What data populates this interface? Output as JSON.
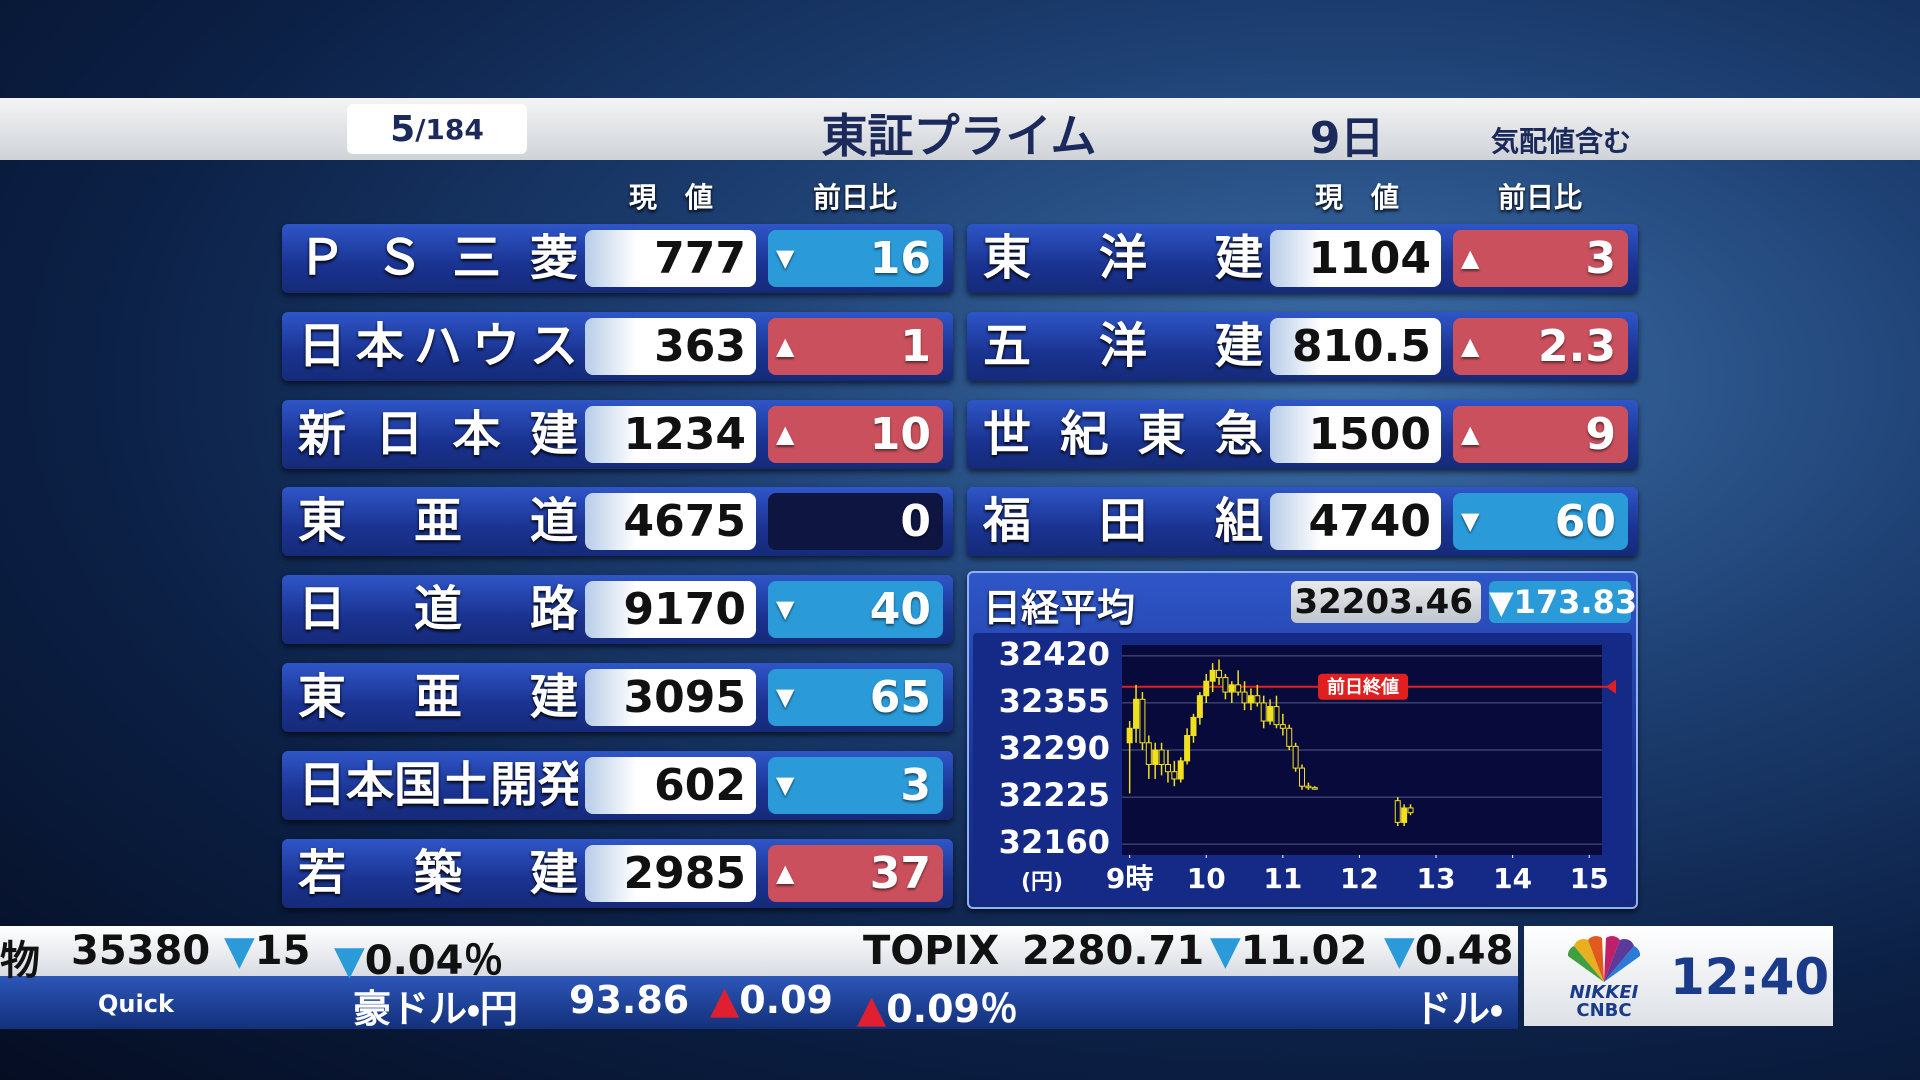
{
  "header": {
    "page": "5",
    "total": "/184",
    "title": "東証プライム",
    "date": "9日",
    "note": "気配値含む"
  },
  "columns": {
    "price": "現　値",
    "change": "前日比"
  },
  "stocks": [
    {
      "name": "ＰＳ三菱",
      "price": "777",
      "arrow": "▼",
      "change": "16",
      "color": "#2a9ad8"
    },
    {
      "name": "日本ハウス",
      "price": "363",
      "arrow": "▲",
      "change": "1",
      "color": "#c9505c"
    },
    {
      "name": "新日本建",
      "price": "1234",
      "arrow": "▲",
      "change": "10",
      "color": "#c9505c"
    },
    {
      "name": "東亜道",
      "price": "4675",
      "change": "0",
      "color": "#0d1540"
    },
    {
      "name": "日道路",
      "price": "9170",
      "arrow": "▼",
      "change": "40",
      "color": "#2a9ad8"
    },
    {
      "name": "東亜建",
      "price": "3095",
      "arrow": "▼",
      "change": "65",
      "color": "#2a9ad8"
    },
    {
      "name": "日本国土開発",
      "price": "602",
      "arrow": "▼",
      "change": "3",
      "color": "#2a9ad8"
    },
    {
      "name": "若築建",
      "price": "2985",
      "arrow": "▲",
      "change": "37",
      "color": "#c9505c"
    },
    {
      "name": "東洋建",
      "price": "1104",
      "arrow": "▲",
      "change": "3",
      "color": "#c9505c"
    },
    {
      "name": "五洋建",
      "price": "810.5",
      "arrow": "▲",
      "change": "2.3",
      "color": "#c9505c"
    },
    {
      "name": "世紀東急",
      "price": "1500",
      "arrow": "▲",
      "change": "9",
      "color": "#c9505c"
    },
    {
      "name": "福田組",
      "price": "4740",
      "arrow": "▼",
      "change": "60",
      "color": "#2a9ad8"
    }
  ],
  "index": {
    "name": "日経平均",
    "value": "32203.46",
    "change": "▼173.83"
  },
  "chart_data": {
    "type": "candlestick",
    "color": "#f0e020",
    "x": [
      540,
      545,
      550,
      555,
      560,
      565,
      570,
      575,
      580,
      585,
      590,
      595,
      600,
      605,
      610,
      615,
      620,
      625,
      630,
      635,
      640,
      645,
      650,
      655,
      660,
      665,
      670,
      675,
      680,
      685,
      750,
      755,
      760
    ],
    "open": [
      32300,
      32320,
      32360,
      32300,
      32270,
      32290,
      32270,
      32260,
      32250,
      32275,
      32310,
      32335,
      32365,
      32385,
      32400,
      32390,
      32370,
      32380,
      32370,
      32355,
      32365,
      32355,
      32330,
      32350,
      32325,
      32320,
      32295,
      32265,
      32240,
      32238,
      32220,
      32190,
      32210
    ],
    "high": [
      32330,
      32380,
      32370,
      32310,
      32300,
      32300,
      32290,
      32275,
      32280,
      32320,
      32340,
      32370,
      32395,
      32410,
      32415,
      32395,
      32385,
      32400,
      32385,
      32375,
      32380,
      32365,
      32360,
      32365,
      32340,
      32325,
      32300,
      32270,
      32245,
      32240,
      32225,
      32215,
      32215
    ],
    "low": [
      32230,
      32300,
      32290,
      32250,
      32250,
      32255,
      32245,
      32240,
      32245,
      32270,
      32300,
      32325,
      32355,
      32370,
      32380,
      32360,
      32355,
      32365,
      32345,
      32345,
      32350,
      32320,
      32325,
      32320,
      32310,
      32290,
      32260,
      32235,
      32235,
      32235,
      32185,
      32185,
      32200
    ],
    "close": [
      32320,
      32360,
      32300,
      32270,
      32290,
      32270,
      32260,
      32250,
      32275,
      32310,
      32335,
      32365,
      32385,
      32400,
      32390,
      32370,
      32380,
      32370,
      32355,
      32365,
      32355,
      32330,
      32350,
      32325,
      32320,
      32295,
      32265,
      32240,
      32238,
      32237,
      32190,
      32210,
      32203.46
    ],
    "xlim": [
      534,
      910
    ],
    "xticks": [
      {
        "value": 540,
        "label": "9時"
      },
      {
        "value": 600,
        "label": "10"
      },
      {
        "value": 660,
        "label": "11"
      },
      {
        "value": 720,
        "label": "12"
      },
      {
        "value": 780,
        "label": "13"
      },
      {
        "value": 840,
        "label": "14"
      },
      {
        "value": 900,
        "label": "15"
      }
    ],
    "ylim": [
      32145,
      32435
    ],
    "yticks": [
      32420,
      32355,
      32290,
      32225,
      32160
    ],
    "y_unit": "(円)",
    "grid": true,
    "reference": {
      "value": 32377.29,
      "label": "前日終値",
      "color": "#e02020"
    }
  },
  "ticker": {
    "row1": [
      "物",
      "35380",
      "▼15",
      "▼0.04％",
      "TOPIX",
      "2280.71",
      "▼11.02",
      "▼0.48"
    ],
    "row2": [
      "Quick",
      "豪ドル・円",
      "93.86",
      "▲0.09",
      "▲0.09％",
      "ドル・"
    ]
  },
  "logo": [
    "NIKKEI",
    "CNBC"
  ],
  "clock": "12:40"
}
